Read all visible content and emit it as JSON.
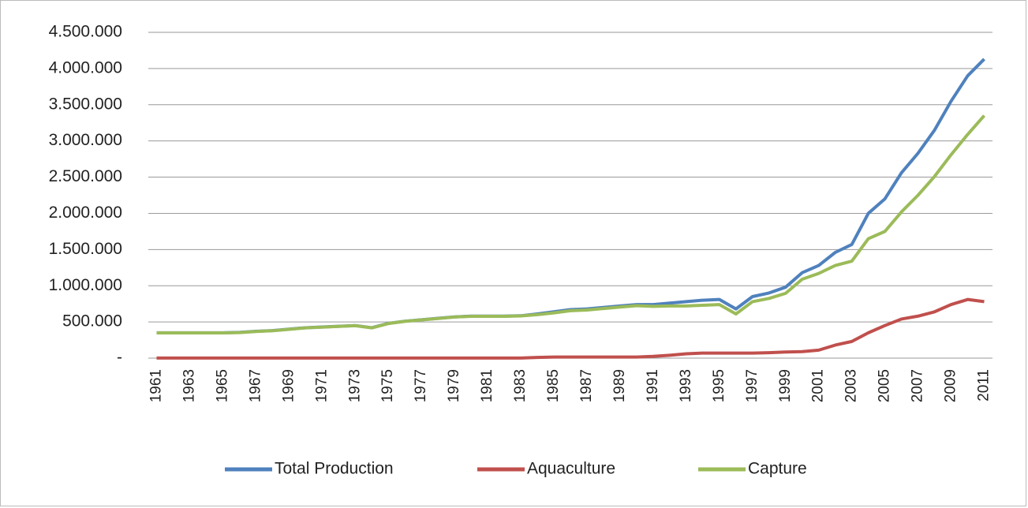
{
  "chart_data": {
    "type": "line",
    "categories": [
      "1961",
      null,
      "1963",
      null,
      "1965",
      null,
      "1967",
      null,
      "1969",
      null,
      "1971",
      null,
      "1973",
      null,
      "1975",
      null,
      "1977",
      null,
      "1979",
      null,
      "1981",
      null,
      "1983",
      null,
      "1985",
      null,
      "1987",
      null,
      "1989",
      null,
      "1991",
      null,
      "1993",
      null,
      "1995",
      null,
      "1997",
      null,
      "1999",
      null,
      "2001",
      null,
      "2003",
      null,
      "2005",
      null,
      "2007",
      null,
      "2009",
      null,
      "2011"
    ],
    "series": [
      {
        "name": "Total Production",
        "color": "#4f81bd",
        "values": [
          350000,
          350000,
          350000,
          350000,
          350000,
          355000,
          370000,
          380000,
          400000,
          420000,
          430000,
          440000,
          450000,
          420000,
          480000,
          510000,
          530000,
          550000,
          570000,
          580000,
          580000,
          580000,
          585000,
          610000,
          640000,
          670000,
          680000,
          700000,
          720000,
          740000,
          740000,
          760000,
          780000,
          800000,
          810000,
          680000,
          850000,
          900000,
          980000,
          1180000,
          1280000,
          1460000,
          1570000,
          2000000,
          2200000,
          2560000,
          2830000,
          3150000,
          3550000,
          3900000,
          4130000
        ]
      },
      {
        "name": "Aquaculture",
        "color": "#c0504d",
        "values": [
          2000,
          2000,
          2000,
          2000,
          2000,
          2000,
          2000,
          2000,
          2000,
          2000,
          2000,
          2000,
          2000,
          2000,
          2000,
          2000,
          2000,
          2000,
          2000,
          2000,
          2000,
          2000,
          2000,
          10000,
          15000,
          15000,
          15000,
          15000,
          15000,
          15000,
          25000,
          40000,
          60000,
          70000,
          70000,
          70000,
          70000,
          75000,
          85000,
          90000,
          110000,
          180000,
          230000,
          350000,
          450000,
          540000,
          580000,
          640000,
          740000,
          810000,
          780000
        ]
      },
      {
        "name": "Capture",
        "color": "#9bbb59",
        "values": [
          348000,
          348000,
          348000,
          348000,
          348000,
          353000,
          368000,
          378000,
          398000,
          418000,
          428000,
          438000,
          448000,
          418000,
          478000,
          508000,
          528000,
          548000,
          568000,
          578000,
          578000,
          578000,
          583000,
          600000,
          625000,
          655000,
          665000,
          685000,
          705000,
          725000,
          715000,
          720000,
          720000,
          730000,
          740000,
          610000,
          780000,
          825000,
          895000,
          1090000,
          1170000,
          1280000,
          1340000,
          1650000,
          1750000,
          2020000,
          2250000,
          2510000,
          2810000,
          3090000,
          3350000
        ]
      }
    ],
    "ylim": [
      0,
      4500000
    ],
    "yticks": [
      {
        "value": 0,
        "label": "-"
      },
      {
        "value": 500000,
        "label": "500.000"
      },
      {
        "value": 1000000,
        "label": "1.000.000"
      },
      {
        "value": 1500000,
        "label": "1.500.000"
      },
      {
        "value": 2000000,
        "label": "2.000.000"
      },
      {
        "value": 2500000,
        "label": "2.500.000"
      },
      {
        "value": 3000000,
        "label": "3.000.000"
      },
      {
        "value": 3500000,
        "label": "3.500.000"
      },
      {
        "value": 4000000,
        "label": "4.000.000"
      },
      {
        "value": 4500000,
        "label": "4.500.000"
      }
    ],
    "grid": true,
    "legend": "bottom"
  }
}
